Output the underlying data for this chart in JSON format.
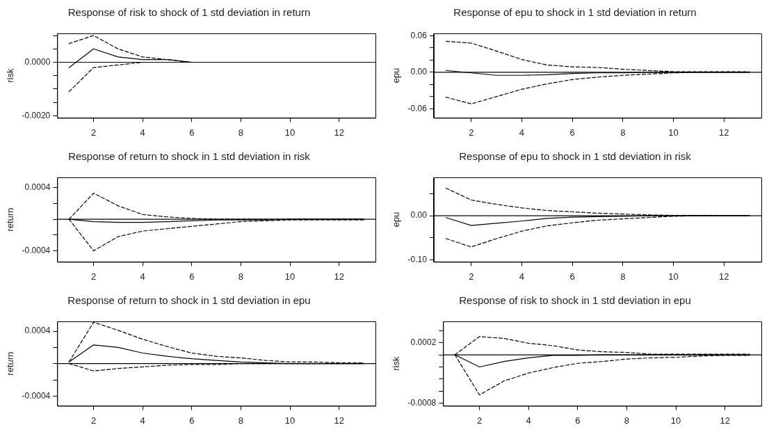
{
  "chart_data": [
    {
      "type": "line",
      "title": "Response of risk to shock of 1 std deviation in return",
      "ylabel": "risk",
      "x": [
        1,
        2,
        3,
        4,
        5,
        6,
        7,
        8,
        9,
        10,
        11,
        12,
        13
      ],
      "xlim": [
        0.52,
        13.48
      ],
      "xticks": [
        2,
        4,
        6,
        8,
        10,
        12
      ],
      "ylim": [
        -0.00208,
        0.00108
      ],
      "yticks": [
        {
          "value": 0.001,
          "label": null
        },
        {
          "value": 0.0005,
          "label": null
        },
        {
          "value": 0,
          "label": "0.0000"
        },
        {
          "value": -0.0005,
          "label": null
        },
        {
          "value": -0.001,
          "label": null
        },
        {
          "value": -0.0015,
          "label": null
        },
        {
          "value": -0.002,
          "label": "-0.0020"
        }
      ],
      "marker": "none",
      "legend": false,
      "ref_lines": [
        {
          "axis": "y",
          "value": 0,
          "color": "#000000"
        }
      ],
      "series": [
        {
          "color": "#000000",
          "line_style": "solid",
          "values": [
            -0.0002,
            0.0005,
            0.0002,
            0.0001,
            0.0001,
            0,
            0,
            0,
            0,
            0,
            0,
            0,
            0
          ]
        },
        {
          "color": "#000000",
          "line_style": "dashed",
          "values": [
            0.0007,
            0.001,
            0.0005,
            0.0002,
            0.0001,
            0,
            0,
            0,
            0,
            0,
            0,
            0,
            0
          ]
        },
        {
          "color": "#000000",
          "line_style": "dashed",
          "values": [
            -0.0011,
            -0.0002,
            -0.0001,
            0,
            0,
            0,
            0,
            0,
            0,
            0,
            0,
            0,
            0
          ]
        }
      ]
    },
    {
      "type": "line",
      "title": "Response of epu to shock in 1 std deviation in return",
      "ylabel": "epu",
      "x": [
        1,
        2,
        3,
        4,
        5,
        6,
        7,
        8,
        9,
        10,
        11,
        12,
        13
      ],
      "xlim": [
        0.52,
        13.48
      ],
      "xticks": [
        2,
        4,
        6,
        8,
        10,
        12
      ],
      "ylim": [
        -0.075,
        0.064
      ],
      "yticks": [
        {
          "value": 0.06,
          "label": "0.06"
        },
        {
          "value": 0.04,
          "label": null
        },
        {
          "value": 0.02,
          "label": null
        },
        {
          "value": 0,
          "label": "0.00"
        },
        {
          "value": -0.02,
          "label": null
        },
        {
          "value": -0.04,
          "label": null
        },
        {
          "value": -0.06,
          "label": "-0.06"
        }
      ],
      "marker": "none",
      "legend": false,
      "ref_lines": [
        {
          "axis": "y",
          "value": 0,
          "color": "#000000"
        }
      ],
      "series": [
        {
          "color": "#000000",
          "line_style": "solid",
          "values": [
            0.003,
            -0.001,
            -0.005,
            -0.005,
            -0.004,
            -0.002,
            -0.001,
            -0.001,
            0,
            0,
            0,
            0,
            0
          ]
        },
        {
          "color": "#000000",
          "line_style": "dashed",
          "values": [
            0.051,
            0.048,
            0.035,
            0.021,
            0.012,
            0.009,
            0.008,
            0.005,
            0.003,
            0.001,
            0.001,
            0.001,
            0.001
          ]
        },
        {
          "color": "#000000",
          "line_style": "dashed",
          "values": [
            -0.041,
            -0.052,
            -0.04,
            -0.028,
            -0.019,
            -0.012,
            -0.008,
            -0.005,
            -0.003,
            -0.001,
            0,
            0,
            0
          ]
        }
      ]
    },
    {
      "type": "line",
      "title": "Response of return to shock in 1 std deviation in risk",
      "ylabel": "return",
      "x": [
        1,
        2,
        3,
        4,
        5,
        6,
        7,
        8,
        9,
        10,
        11,
        12,
        13
      ],
      "xlim": [
        0.52,
        13.48
      ],
      "xticks": [
        2,
        4,
        6,
        8,
        10,
        12
      ],
      "ylim": [
        -0.00054,
        0.00053
      ],
      "yticks": [
        {
          "value": 0.0004,
          "label": "0.0004"
        },
        {
          "value": 0.0002,
          "label": null
        },
        {
          "value": 0,
          "label": null
        },
        {
          "value": -0.0002,
          "label": null
        },
        {
          "value": -0.0004,
          "label": "-0.0004"
        }
      ],
      "marker": "none",
      "legend": false,
      "ref_lines": [
        {
          "axis": "y",
          "value": 0,
          "color": "#000000"
        }
      ],
      "series": [
        {
          "color": "#000000",
          "line_style": "solid",
          "values": [
            0,
            -3e-05,
            -4e-05,
            -4e-05,
            -3e-05,
            -2e-05,
            -1e-05,
            -1e-05,
            -1e-05,
            0,
            0,
            0,
            0
          ]
        },
        {
          "color": "#000000",
          "line_style": "dashed",
          "values": [
            0,
            0.00033,
            0.00017,
            6e-05,
            3e-05,
            1e-05,
            0,
            0,
            0,
            0,
            0,
            0,
            0
          ]
        },
        {
          "color": "#000000",
          "line_style": "dashed",
          "values": [
            0,
            -0.0004,
            -0.00022,
            -0.00015,
            -0.00012,
            -9e-05,
            -6e-05,
            -3e-05,
            -2e-05,
            -1e-05,
            -1e-05,
            -1e-05,
            -1e-05
          ]
        }
      ]
    },
    {
      "type": "line",
      "title": "Response of epu to shock in 1 std deviation in risk",
      "ylabel": "epu",
      "x": [
        1,
        2,
        3,
        4,
        5,
        6,
        7,
        8,
        9,
        10,
        11,
        12,
        13
      ],
      "xlim": [
        0.52,
        13.48
      ],
      "xticks": [
        2,
        4,
        6,
        8,
        10,
        12
      ],
      "ylim": [
        -0.105,
        0.0875
      ],
      "yticks": [
        {
          "value": 0.05,
          "label": null
        },
        {
          "value": 0,
          "label": "0.00"
        },
        {
          "value": -0.05,
          "label": null
        },
        {
          "value": -0.1,
          "label": "-0.10"
        }
      ],
      "marker": "none",
      "legend": false,
      "ref_lines": [
        {
          "axis": "y",
          "value": 0,
          "color": "#000000"
        }
      ],
      "series": [
        {
          "color": "#000000",
          "line_style": "solid",
          "values": [
            -0.004,
            -0.022,
            -0.017,
            -0.012,
            -0.006,
            -0.003,
            -0.002,
            -0.001,
            0,
            0,
            0,
            0,
            0
          ]
        },
        {
          "color": "#000000",
          "line_style": "dashed",
          "values": [
            0.063,
            0.036,
            0.026,
            0.018,
            0.012,
            0.009,
            0.006,
            0.004,
            0.002,
            0.001,
            0.001,
            0,
            0
          ]
        },
        {
          "color": "#000000",
          "line_style": "dashed",
          "values": [
            -0.052,
            -0.071,
            -0.052,
            -0.035,
            -0.023,
            -0.016,
            -0.01,
            -0.007,
            -0.004,
            -0.001,
            0,
            0,
            0
          ]
        }
      ]
    },
    {
      "type": "line",
      "title": "Response of return to shock in 1 std deviation in epu",
      "ylabel": "return",
      "x": [
        1,
        2,
        3,
        4,
        5,
        6,
        7,
        8,
        9,
        10,
        11,
        12,
        13
      ],
      "xlim": [
        0.52,
        13.48
      ],
      "xticks": [
        2,
        4,
        6,
        8,
        10,
        12
      ],
      "ylim": [
        -0.00052,
        0.00052
      ],
      "yticks": [
        {
          "value": 0.0004,
          "label": "0.0004"
        },
        {
          "value": 0.0002,
          "label": null
        },
        {
          "value": 0,
          "label": null
        },
        {
          "value": -0.0002,
          "label": null
        },
        {
          "value": -0.0004,
          "label": "-0.0004"
        }
      ],
      "marker": "none",
      "legend": false,
      "ref_lines": [
        {
          "axis": "y",
          "value": 0,
          "color": "#000000"
        }
      ],
      "series": [
        {
          "color": "#000000",
          "line_style": "solid",
          "values": [
            2e-05,
            0.00023,
            0.0002,
            0.00013,
            9e-05,
            6e-05,
            4e-05,
            2e-05,
            1e-05,
            0,
            0,
            0,
            0
          ]
        },
        {
          "color": "#000000",
          "line_style": "dashed",
          "values": [
            2e-05,
            0.00051,
            0.00041,
            0.0003,
            0.00021,
            0.00013,
            9e-05,
            7e-05,
            4e-05,
            2e-05,
            2e-05,
            1e-05,
            1e-05
          ]
        },
        {
          "color": "#000000",
          "line_style": "dashed",
          "values": [
            0,
            -9e-05,
            -6e-05,
            -4e-05,
            -2e-05,
            -1e-05,
            -1e-05,
            0,
            0,
            0,
            0,
            0,
            0
          ]
        }
      ]
    },
    {
      "type": "line",
      "title": "Response of risk to shock in 1 std deviation in epu",
      "ylabel": "risk",
      "x": [
        1,
        2,
        3,
        4,
        5,
        6,
        7,
        8,
        9,
        10,
        11,
        12,
        13
      ],
      "xlim": [
        0.52,
        13.48
      ],
      "xticks": [
        2,
        4,
        6,
        8,
        10,
        12
      ],
      "ylim": [
        -0.00084,
        0.00055
      ],
      "yticks": [
        {
          "value": 0.0004,
          "label": null
        },
        {
          "value": 0.0002,
          "label": "0.0002"
        },
        {
          "value": 0,
          "label": null
        },
        {
          "value": -0.0002,
          "label": null
        },
        {
          "value": -0.0004,
          "label": null
        },
        {
          "value": -0.0006,
          "label": null
        },
        {
          "value": -0.0008,
          "label": "-0.0008"
        }
      ],
      "marker": "none",
      "legend": false,
      "ref_lines": [
        {
          "axis": "y",
          "value": 0,
          "color": "#000000"
        }
      ],
      "series": [
        {
          "color": "#000000",
          "line_style": "solid",
          "values": [
            0,
            -0.0002,
            -0.00011,
            -5e-05,
            -1e-05,
            -1e-05,
            0,
            0,
            0,
            0,
            0,
            0,
            0
          ]
        },
        {
          "color": "#000000",
          "line_style": "dashed",
          "values": [
            0,
            0.0003,
            0.00027,
            0.00019,
            0.00015,
            8e-05,
            5e-05,
            4e-05,
            1e-05,
            1e-05,
            1e-05,
            1e-05,
            1e-05
          ]
        },
        {
          "color": "#000000",
          "line_style": "dashed",
          "values": [
            0,
            -0.00066,
            -0.00043,
            -0.0003,
            -0.00021,
            -0.00014,
            -0.00011,
            -7e-05,
            -5e-05,
            -4e-05,
            -2e-05,
            -1e-05,
            -1e-05
          ]
        }
      ]
    }
  ]
}
